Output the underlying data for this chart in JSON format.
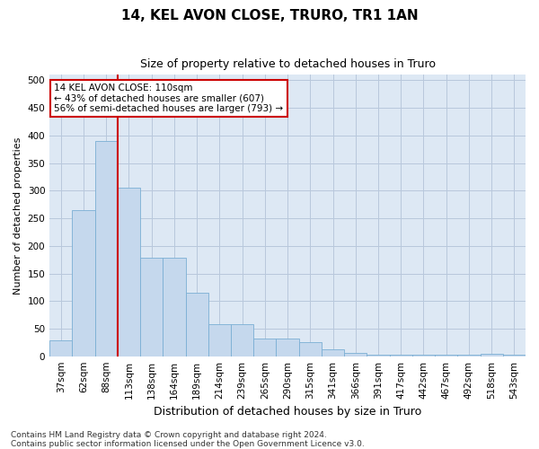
{
  "title1": "14, KEL AVON CLOSE, TRURO, TR1 1AN",
  "title2": "Size of property relative to detached houses in Truro",
  "xlabel": "Distribution of detached houses by size in Truro",
  "ylabel": "Number of detached properties",
  "categories": [
    "37sqm",
    "62sqm",
    "88sqm",
    "113sqm",
    "138sqm",
    "164sqm",
    "189sqm",
    "214sqm",
    "239sqm",
    "265sqm",
    "290sqm",
    "315sqm",
    "341sqm",
    "366sqm",
    "391sqm",
    "417sqm",
    "442sqm",
    "467sqm",
    "492sqm",
    "518sqm",
    "543sqm"
  ],
  "values": [
    28,
    265,
    390,
    305,
    178,
    178,
    115,
    58,
    58,
    32,
    32,
    25,
    13,
    6,
    2,
    2,
    2,
    2,
    2,
    5,
    3
  ],
  "bar_color": "#c5d8ed",
  "bar_edge_color": "#7aafd4",
  "grid_color": "#b8c8dc",
  "background_color": "#dde8f4",
  "vline_x": 3.0,
  "vline_color": "#cc0000",
  "annotation_text": "14 KEL AVON CLOSE: 110sqm\n← 43% of detached houses are smaller (607)\n56% of semi-detached houses are larger (793) →",
  "annotation_box_color": "#ffffff",
  "annotation_box_edge": "#cc0000",
  "ylim": [
    0,
    510
  ],
  "yticks": [
    0,
    50,
    100,
    150,
    200,
    250,
    300,
    350,
    400,
    450,
    500
  ],
  "footer": "Contains HM Land Registry data © Crown copyright and database right 2024.\nContains public sector information licensed under the Open Government Licence v3.0.",
  "title1_fontsize": 11,
  "title2_fontsize": 9,
  "xlabel_fontsize": 9,
  "ylabel_fontsize": 8,
  "tick_fontsize": 7.5,
  "footer_fontsize": 6.5
}
